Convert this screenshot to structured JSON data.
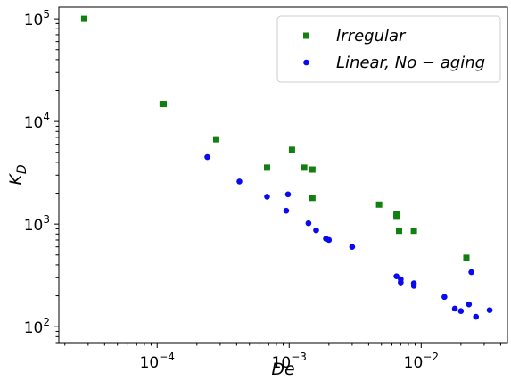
{
  "chart_data": {
    "type": "scatter",
    "xlabel": "De",
    "ylabel": "K",
    "ylabel_subscript": "D",
    "xscale": "log",
    "yscale": "log",
    "xlim": [
      1.8e-05,
      0.045
    ],
    "ylim": [
      70,
      130000
    ],
    "x_ticks": [
      {
        "value": 0.0001,
        "base": "10",
        "exp": "−4"
      },
      {
        "value": 0.001,
        "base": "10",
        "exp": "−3"
      },
      {
        "value": 0.01,
        "base": "10",
        "exp": "−2"
      }
    ],
    "y_ticks": [
      {
        "value": 100,
        "base": "10",
        "exp": "2"
      },
      {
        "value": 1000,
        "base": "10",
        "exp": "3"
      },
      {
        "value": 10000,
        "base": "10",
        "exp": "4"
      },
      {
        "value": 100000,
        "base": "10",
        "exp": "5"
      }
    ],
    "legend_position": "top-right",
    "series": [
      {
        "name": "Irregular",
        "color": "#118011",
        "marker": "square",
        "points": [
          [
            2.8e-05,
            100000
          ],
          [
            0.00011,
            14800
          ],
          [
            0.000112,
            14800
          ],
          [
            0.00028,
            6700
          ],
          [
            0.00068,
            3550
          ],
          [
            0.00105,
            5300
          ],
          [
            0.0013,
            3550
          ],
          [
            0.0015,
            3400
          ],
          [
            0.0015,
            1800
          ],
          [
            0.0048,
            1550
          ],
          [
            0.0065,
            1250
          ],
          [
            0.0065,
            1180
          ],
          [
            0.0068,
            860
          ],
          [
            0.0088,
            860
          ],
          [
            0.022,
            470
          ]
        ]
      },
      {
        "name": "Linear, No − aging",
        "color": "#0a0af0",
        "marker": "circle",
        "points": [
          [
            0.00024,
            4500
          ],
          [
            0.00042,
            2600
          ],
          [
            0.00068,
            1850
          ],
          [
            0.00098,
            1950
          ],
          [
            0.00095,
            1350
          ],
          [
            0.0014,
            1020
          ],
          [
            0.0016,
            870
          ],
          [
            0.0019,
            720
          ],
          [
            0.002,
            700
          ],
          [
            0.003,
            600
          ],
          [
            0.0065,
            310
          ],
          [
            0.007,
            290
          ],
          [
            0.007,
            270
          ],
          [
            0.0088,
            265
          ],
          [
            0.0088,
            250
          ],
          [
            0.015,
            195
          ],
          [
            0.018,
            150
          ],
          [
            0.02,
            142
          ],
          [
            0.023,
            165
          ],
          [
            0.024,
            340
          ],
          [
            0.026,
            125
          ],
          [
            0.033,
            145
          ]
        ]
      }
    ]
  }
}
